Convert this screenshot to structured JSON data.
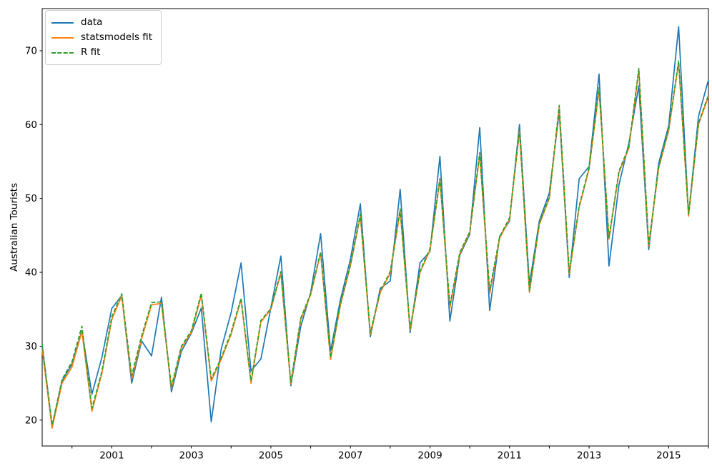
{
  "chart_data": {
    "type": "line",
    "title": "",
    "xlabel": "",
    "ylabel": "Australian Tourists",
    "legend_position": "upper left",
    "grid": false,
    "xlim": [
      1999.25,
      2016.0
    ],
    "ylim": [
      16.5,
      75.7
    ],
    "x": [
      1999.25,
      1999.5,
      1999.75,
      2000.0,
      2000.25,
      2000.5,
      2000.75,
      2001.0,
      2001.25,
      2001.5,
      2001.75,
      2002.0,
      2002.25,
      2002.5,
      2002.75,
      2003.0,
      2003.25,
      2003.5,
      2003.75,
      2004.0,
      2004.25,
      2004.5,
      2004.75,
      2005.0,
      2005.25,
      2005.5,
      2005.75,
      2006.0,
      2006.25,
      2006.5,
      2006.75,
      2007.0,
      2007.25,
      2007.5,
      2007.75,
      2008.0,
      2008.25,
      2008.5,
      2008.75,
      2009.0,
      2009.25,
      2009.5,
      2009.75,
      2010.0,
      2010.25,
      2010.5,
      2010.75,
      2011.0,
      2011.25,
      2011.5,
      2011.75,
      2012.0,
      2012.25,
      2012.5,
      2012.75,
      2013.0,
      2013.25,
      2013.5,
      2013.75,
      2014.0,
      2014.25,
      2014.5,
      2014.75,
      2015.0,
      2015.25,
      2015.5,
      2015.75,
      2016.0
    ],
    "series": [
      {
        "name": "data",
        "color": "#1f77b4",
        "style": "solid",
        "values": [
          30.05,
          19.15,
          25.32,
          27.59,
          32.08,
          23.49,
          28.48,
          35.12,
          36.84,
          25.01,
          30.72,
          28.69,
          36.64,
          23.82,
          29.31,
          31.77,
          35.18,
          19.78,
          29.6,
          34.54,
          41.27,
          26.66,
          28.28,
          35.19,
          42.21,
          24.65,
          32.67,
          37.26,
          45.24,
          29.35,
          36.34,
          41.78,
          49.28,
          31.28,
          37.85,
          38.84,
          51.24,
          31.84,
          41.32,
          42.8,
          55.71,
          33.41,
          42.32,
          45.16,
          59.58,
          34.84,
          44.84,
          46.97,
          60.02,
          38.37,
          46.98,
          50.73,
          61.65,
          39.3,
          52.67,
          54.33,
          66.83,
          40.87,
          51.83,
          57.49,
          65.25,
          43.06,
          54.76,
          59.83,
          73.26,
          47.7,
          61.1,
          66.06
        ]
      },
      {
        "name": "statsmodels fit",
        "color": "#ff7f0e",
        "style": "solid",
        "values": [
          29.6,
          18.9,
          25.0,
          27.2,
          32.0,
          21.2,
          26.3,
          33.6,
          36.8,
          25.6,
          31.0,
          35.6,
          35.8,
          24.3,
          29.8,
          31.9,
          36.9,
          25.3,
          28.2,
          31.6,
          36.3,
          25.0,
          33.3,
          35.0,
          39.9,
          24.9,
          33.6,
          37.0,
          42.6,
          28.2,
          35.6,
          40.9,
          47.6,
          31.6,
          37.3,
          39.9,
          48.3,
          32.2,
          40.0,
          43.0,
          52.5,
          35.2,
          42.5,
          45.4,
          55.9,
          37.1,
          44.6,
          47.2,
          59.1,
          37.3,
          46.5,
          50.0,
          62.3,
          39.8,
          48.8,
          54.0,
          64.7,
          44.5,
          53.5,
          56.8,
          67.4,
          43.6,
          54.1,
          59.2,
          68.4,
          47.6,
          60.0,
          63.8
        ]
      },
      {
        "name": "R fit",
        "color": "#2ca02c",
        "style": "dashed",
        "values": [
          30.3,
          19.3,
          25.5,
          27.9,
          32.7,
          21.6,
          26.6,
          34.0,
          37.1,
          26.0,
          31.4,
          35.9,
          36.0,
          24.5,
          30.0,
          32.1,
          37.2,
          25.6,
          28.4,
          31.9,
          36.5,
          25.3,
          33.5,
          35.1,
          40.1,
          25.1,
          33.8,
          37.1,
          42.8,
          28.5,
          35.8,
          41.0,
          47.9,
          31.8,
          37.5,
          40.1,
          48.6,
          32.4,
          40.2,
          43.2,
          52.7,
          35.5,
          42.7,
          45.5,
          56.2,
          37.5,
          44.8,
          47.4,
          59.3,
          37.5,
          46.7,
          50.2,
          62.6,
          40.0,
          49.0,
          54.2,
          65.0,
          44.7,
          53.7,
          57.0,
          67.6,
          43.8,
          54.3,
          59.4,
          68.6,
          47.9,
          60.2,
          64.0
        ]
      }
    ],
    "xticks": [
      {
        "value": 2000,
        "label": ""
      },
      {
        "value": 2001,
        "label": "2001"
      },
      {
        "value": 2002,
        "label": ""
      },
      {
        "value": 2003,
        "label": "2003"
      },
      {
        "value": 2004,
        "label": ""
      },
      {
        "value": 2005,
        "label": "2005"
      },
      {
        "value": 2006,
        "label": ""
      },
      {
        "value": 2007,
        "label": "2007"
      },
      {
        "value": 2008,
        "label": ""
      },
      {
        "value": 2009,
        "label": "2009"
      },
      {
        "value": 2010,
        "label": ""
      },
      {
        "value": 2011,
        "label": "2011"
      },
      {
        "value": 2012,
        "label": ""
      },
      {
        "value": 2013,
        "label": "2013"
      },
      {
        "value": 2014,
        "label": ""
      },
      {
        "value": 2015,
        "label": "2015"
      },
      {
        "value": 2016,
        "label": ""
      }
    ],
    "yticks": [
      {
        "value": 20,
        "label": "20"
      },
      {
        "value": 30,
        "label": "30"
      },
      {
        "value": 40,
        "label": "40"
      },
      {
        "value": 50,
        "label": "50"
      },
      {
        "value": 60,
        "label": "60"
      },
      {
        "value": 70,
        "label": "70"
      }
    ]
  }
}
